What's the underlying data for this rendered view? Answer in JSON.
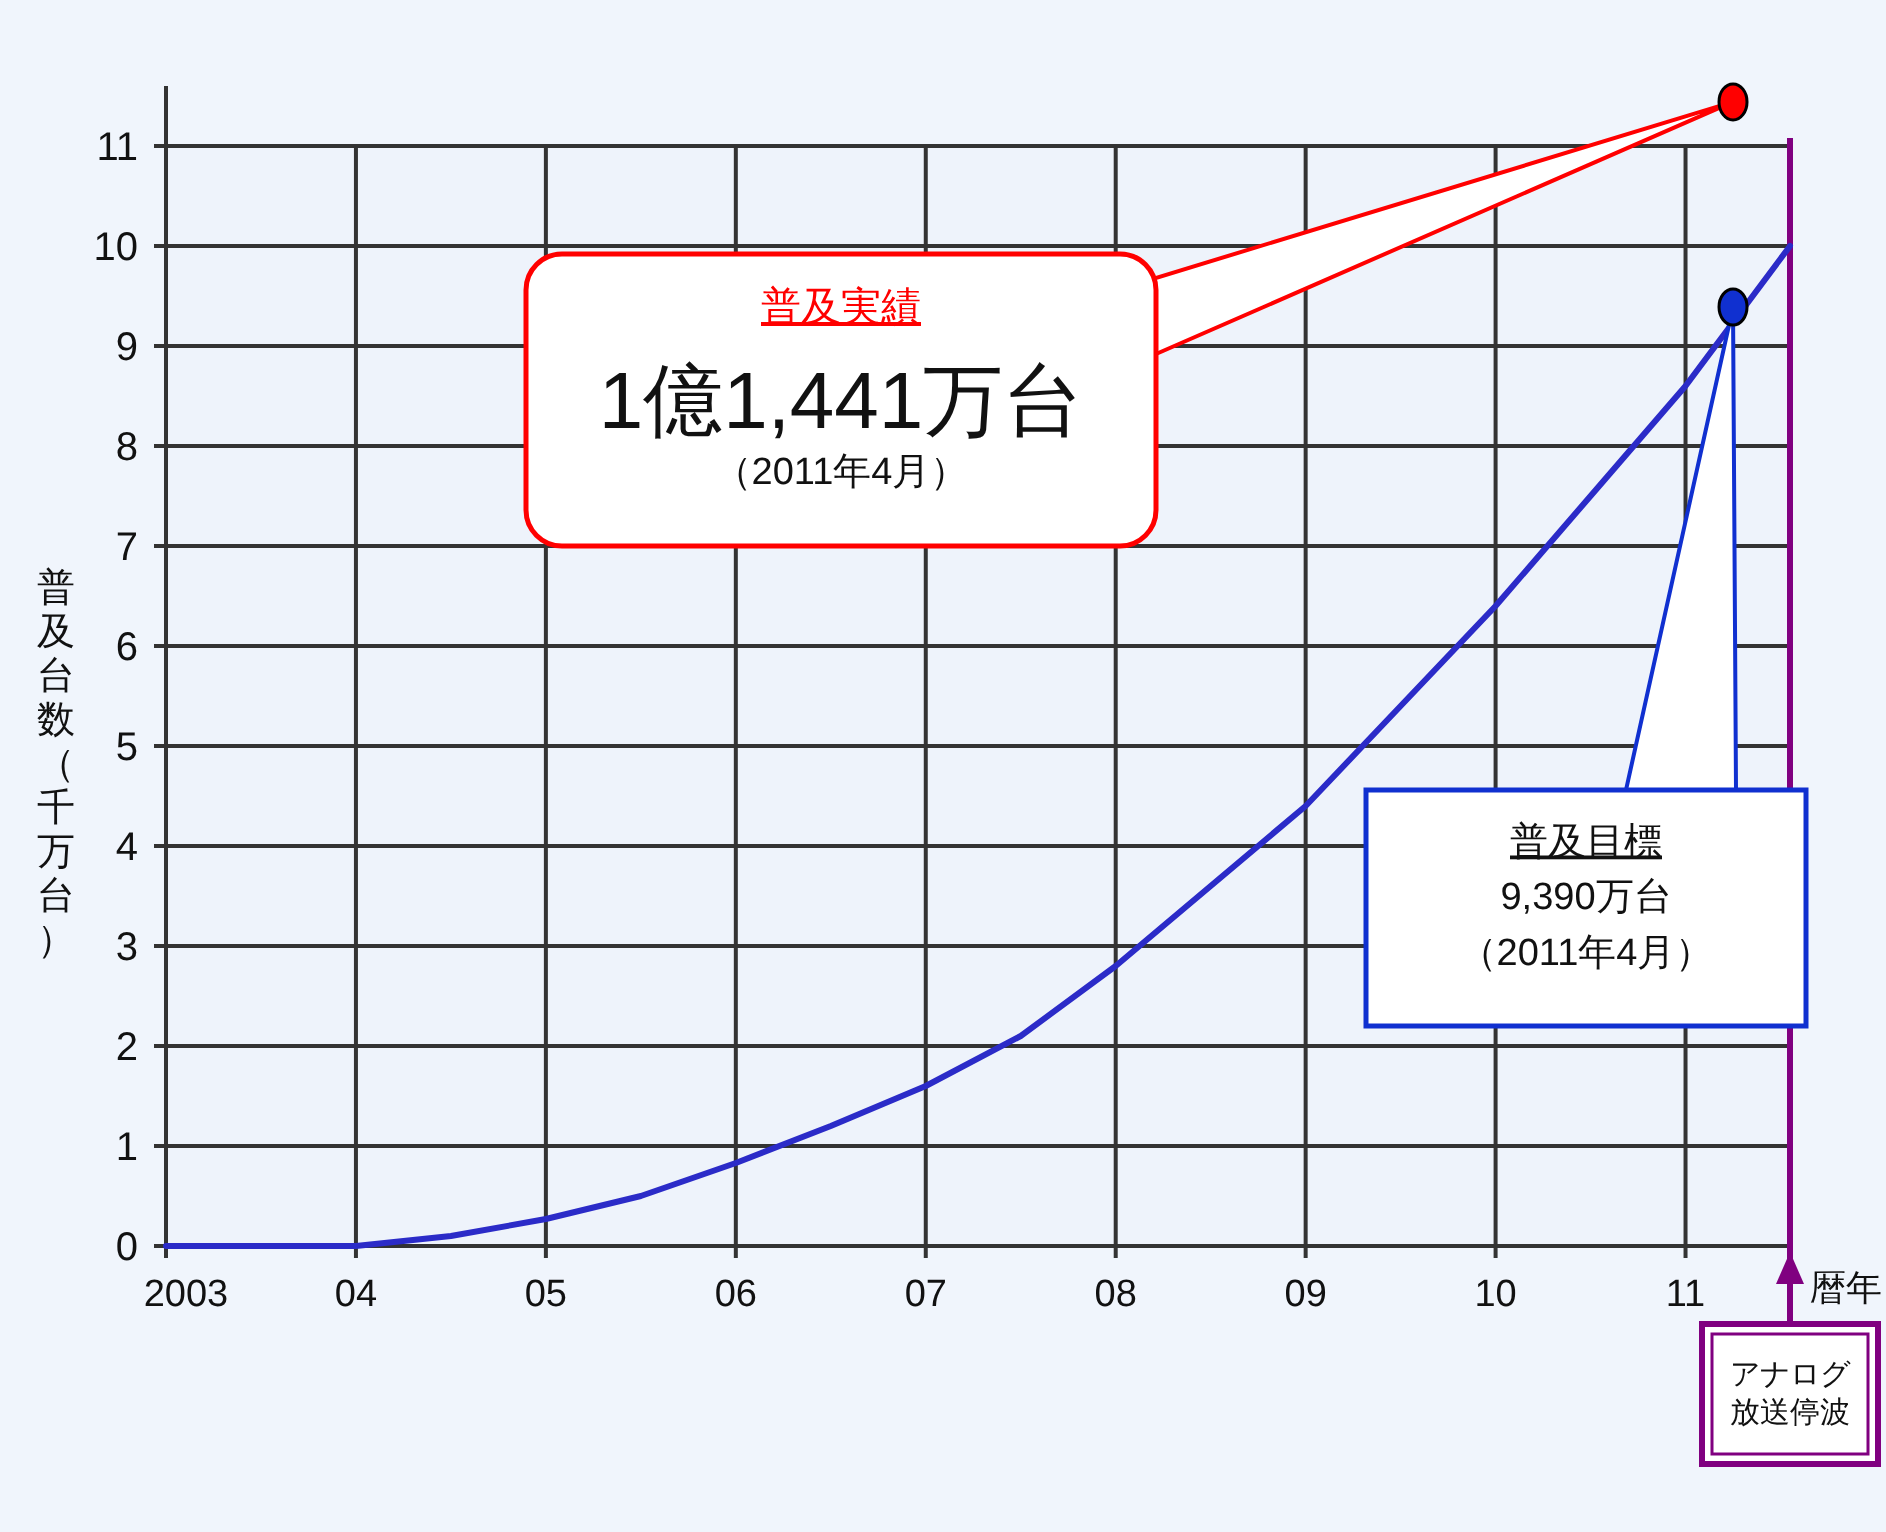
{
  "chart_data": {
    "type": "line",
    "xlabel": "暦年",
    "ylabel": "普及台数（千万台）",
    "x": [
      2003,
      2004,
      2004.5,
      2005,
      2005.5,
      2006,
      2006.5,
      2007,
      2007.5,
      2008,
      2008.5,
      2009,
      2009.5,
      2010,
      2010.5,
      2011,
      2011.55
    ],
    "series": [
      {
        "color": "#2b2bc8",
        "values": [
          0,
          0,
          0.1,
          0.27,
          0.5,
          0.83,
          1.2,
          1.6,
          2.1,
          2.8,
          3.6,
          4.4,
          5.4,
          6.4,
          7.5,
          8.6,
          10.0
        ]
      },
      {
        "type": "scatter",
        "color": "#ff0000",
        "x": [
          2011.25
        ],
        "values": [
          11.441
        ]
      },
      {
        "type": "scatter",
        "color": "#1030d0",
        "x": [
          2011.25
        ],
        "values": [
          9.39
        ]
      }
    ],
    "xlim": [
      2003,
      2011.55
    ],
    "ylim": [
      0,
      11.6
    ],
    "xticks": [
      {
        "value": 2003,
        "label": "2003"
      },
      {
        "value": 2004,
        "label": "04"
      },
      {
        "value": 2005,
        "label": "05"
      },
      {
        "value": 2006,
        "label": "06"
      },
      {
        "value": 2007,
        "label": "07"
      },
      {
        "value": 2008,
        "label": "08"
      },
      {
        "value": 2009,
        "label": "09"
      },
      {
        "value": 2010,
        "label": "10"
      },
      {
        "value": 2011,
        "label": "11"
      }
    ],
    "yticks": [
      0,
      1,
      2,
      3,
      4,
      5,
      6,
      7,
      8,
      9,
      10,
      11
    ],
    "grid": true,
    "ref_lines": [
      {
        "axis": "x",
        "value": 2011.55,
        "label": "アナログ放送停波",
        "color": "#800080"
      }
    ],
    "annotations": [
      "普及実績",
      "1億1,441万台",
      "（2011年4月）",
      "普及目標",
      "9,390万台",
      "（2011年4月）"
    ]
  }
}
